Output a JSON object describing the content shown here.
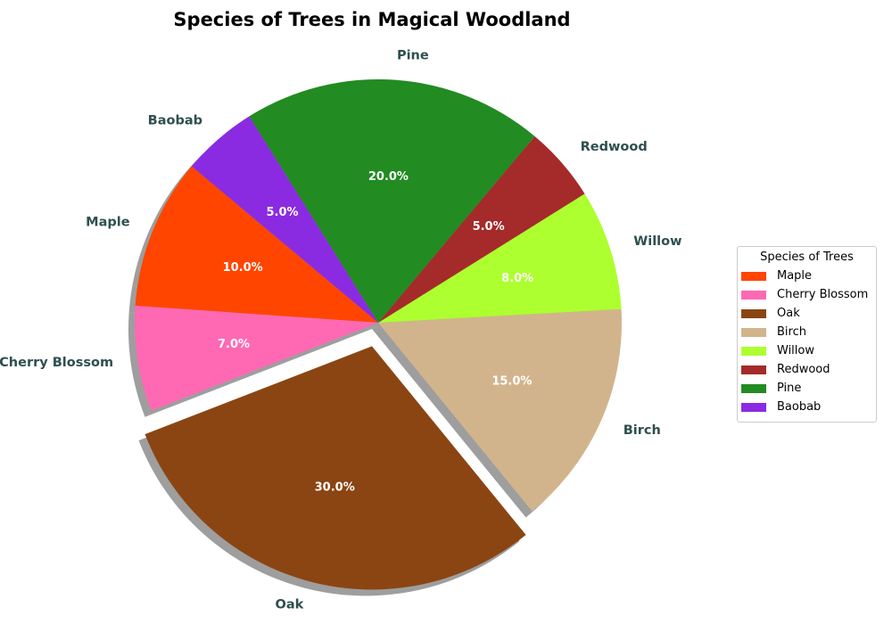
{
  "chart_data": {
    "type": "pie",
    "title": "Species of Trees in Magical Woodland",
    "categories": [
      "Maple",
      "Cherry Blossom",
      "Oak",
      "Birch",
      "Willow",
      "Redwood",
      "Pine",
      "Baobab"
    ],
    "values": [
      10,
      7,
      30,
      15,
      8,
      5,
      20,
      5
    ],
    "percent_labels": [
      "10.0%",
      "7.0%",
      "30.0%",
      "15.0%",
      "8.0%",
      "5.0%",
      "20.0%",
      "5.0%"
    ],
    "colors": [
      "#FF4500",
      "#FF69B4",
      "#8B4513",
      "#D2B48C",
      "#ADFF2F",
      "#A52A2A",
      "#228B22",
      "#8A2BE2"
    ],
    "exploded": [
      "Oak"
    ],
    "shadow": true,
    "start_angle_deg": 140,
    "label_color": "#2F4F4F",
    "percent_color": "#FFFFFF",
    "legend": {
      "title": "Species of Trees",
      "placement": "right"
    }
  }
}
